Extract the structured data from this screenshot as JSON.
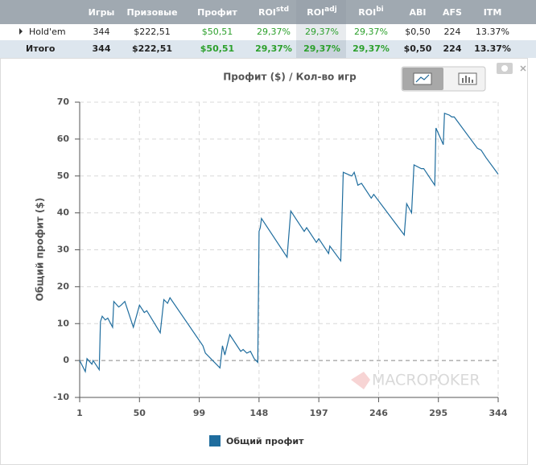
{
  "table": {
    "headers": [
      {
        "text": "Игры"
      },
      {
        "text": "Призовые"
      },
      {
        "text": "Профит"
      },
      {
        "text": "ROI",
        "sup": "std"
      },
      {
        "text": "ROI",
        "sup": "adj"
      },
      {
        "text": "ROI",
        "sup": "bi"
      },
      {
        "text": "ABI"
      },
      {
        "text": "AFS"
      },
      {
        "text": "ITM"
      }
    ],
    "rows": [
      [
        "Hold'em",
        "344",
        "$222,51",
        "$50,51",
        "29,37%",
        "29,37%",
        "29,37%",
        "$0,50",
        "224",
        "13.37%"
      ],
      [
        "Итого",
        "344",
        "$222,51",
        "$50,51",
        "29,37%",
        "29,37%",
        "29,37%",
        "$0,50",
        "224",
        "13.37%"
      ]
    ]
  },
  "chart_data": {
    "type": "line",
    "title": "Профит ($) / Кол-во игр",
    "y_label": "Общий профит ($)",
    "watermark": "MACROPOKER",
    "xlim": [
      1,
      344
    ],
    "xticks": [
      1,
      50,
      99,
      148,
      197,
      246,
      295,
      344
    ],
    "ylim": [
      -10,
      70
    ],
    "yticks": [
      -10,
      0,
      10,
      20,
      30,
      40,
      50,
      60,
      70
    ],
    "grid": true,
    "series": [
      {
        "name": "Общий профит",
        "color": "#1f6d9e",
        "x": [
          1,
          5.6,
          7,
          11,
          12,
          17,
          18,
          19.5,
          22,
          24,
          28,
          29,
          33,
          35,
          38,
          45,
          50,
          54,
          56,
          67,
          70,
          73,
          75,
          102,
          104,
          116,
          118,
          120,
          124,
          133,
          135,
          138,
          141,
          144,
          147,
          148,
          149,
          150,
          171,
          174,
          182,
          185,
          187,
          195,
          197,
          205,
          206,
          215,
          217,
          224,
          226,
          229,
          232,
          240,
          242,
          267,
          269,
          273,
          275,
          281,
          283,
          292,
          293,
          299,
          300,
          304,
          306,
          308,
          327,
          330,
          334,
          344
        ],
        "values": [
          0,
          -3,
          0.5,
          -1,
          0,
          -2.5,
          10.5,
          12,
          11,
          11.5,
          9,
          16,
          14.5,
          15,
          16,
          9,
          15,
          13,
          13.5,
          7.5,
          16.5,
          15.5,
          17,
          4,
          2,
          -2,
          4,
          1.5,
          7,
          2.5,
          3,
          2,
          2.5,
          0.5,
          -0.5,
          35,
          36,
          38.5,
          28,
          40.5,
          36.5,
          35,
          36,
          32,
          33,
          29,
          31,
          27,
          51,
          50,
          51,
          47.5,
          48,
          44,
          45,
          34,
          42.5,
          40,
          53,
          52,
          52,
          47.5,
          63,
          58.5,
          67,
          66.5,
          66,
          66,
          57.5,
          57,
          55,
          50.5
        ]
      }
    ]
  }
}
